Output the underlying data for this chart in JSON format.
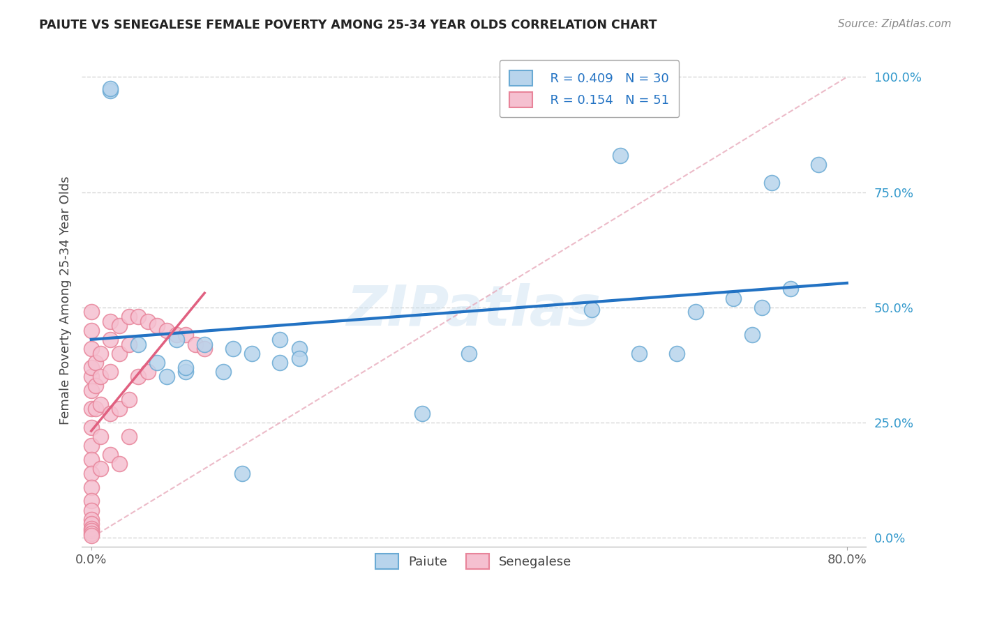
{
  "title": "PAIUTE VS SENEGALESE FEMALE POVERTY AMONG 25-34 YEAR OLDS CORRELATION CHART",
  "source": "Source: ZipAtlas.com",
  "ylabel": "Female Poverty Among 25-34 Year Olds",
  "xlim": [
    -0.01,
    0.82
  ],
  "ylim": [
    -0.02,
    1.05
  ],
  "xtick_positions": [
    0.0,
    0.8
  ],
  "xtick_labels": [
    "0.0%",
    "80.0%"
  ],
  "ytick_positions": [
    0.0,
    0.25,
    0.5,
    0.75,
    1.0
  ],
  "ytick_labels": [
    "0.0%",
    "25.0%",
    "50.0%",
    "75.0%",
    "100.0%"
  ],
  "legend_r_paiute": "R = 0.409",
  "legend_n_paiute": "N = 30",
  "legend_r_senegalese": "R = 0.154",
  "legend_n_senegalese": "N = 51",
  "paiute_color": "#b8d4ec",
  "paiute_edge_color": "#6aaad4",
  "senegalese_color": "#f5c0d0",
  "senegalese_edge_color": "#e8849a",
  "paiute_trend_color": "#2272c3",
  "senegalese_trend_color": "#e06080",
  "diag_line_color": "#e8aabb",
  "watermark": "ZIPatlas",
  "paiute_x": [
    0.02,
    0.02,
    0.05,
    0.07,
    0.09,
    0.1,
    0.12,
    0.14,
    0.15,
    0.17,
    0.2,
    0.22,
    0.22,
    0.35,
    0.4,
    0.53,
    0.56,
    0.58,
    0.62,
    0.64,
    0.68,
    0.7,
    0.71,
    0.72,
    0.74,
    0.77,
    0.2,
    0.16,
    0.1,
    0.08
  ],
  "paiute_y": [
    0.97,
    0.975,
    0.42,
    0.38,
    0.43,
    0.36,
    0.42,
    0.36,
    0.41,
    0.4,
    0.43,
    0.41,
    0.39,
    0.27,
    0.4,
    0.495,
    0.83,
    0.4,
    0.4,
    0.49,
    0.52,
    0.44,
    0.5,
    0.77,
    0.54,
    0.81,
    0.38,
    0.14,
    0.37,
    0.35
  ],
  "senegalese_x": [
    0.0,
    0.0,
    0.0,
    0.0,
    0.0,
    0.0,
    0.0,
    0.0,
    0.0,
    0.0,
    0.0,
    0.0,
    0.0,
    0.0,
    0.0,
    0.0,
    0.0,
    0.0,
    0.0,
    0.0,
    0.005,
    0.005,
    0.005,
    0.01,
    0.01,
    0.01,
    0.01,
    0.01,
    0.02,
    0.02,
    0.02,
    0.02,
    0.02,
    0.03,
    0.03,
    0.03,
    0.04,
    0.04,
    0.04,
    0.05,
    0.05,
    0.06,
    0.06,
    0.07,
    0.08,
    0.09,
    0.1,
    0.11,
    0.12,
    0.04,
    0.03
  ],
  "senegalese_y": [
    0.35,
    0.32,
    0.28,
    0.24,
    0.2,
    0.17,
    0.14,
    0.11,
    0.08,
    0.06,
    0.04,
    0.03,
    0.02,
    0.015,
    0.01,
    0.005,
    0.49,
    0.45,
    0.41,
    0.37,
    0.38,
    0.33,
    0.28,
    0.4,
    0.35,
    0.29,
    0.22,
    0.15,
    0.47,
    0.43,
    0.36,
    0.27,
    0.18,
    0.46,
    0.4,
    0.28,
    0.48,
    0.42,
    0.3,
    0.48,
    0.35,
    0.47,
    0.36,
    0.46,
    0.45,
    0.44,
    0.44,
    0.42,
    0.41,
    0.22,
    0.16
  ],
  "background_color": "#ffffff",
  "grid_color": "#cccccc"
}
